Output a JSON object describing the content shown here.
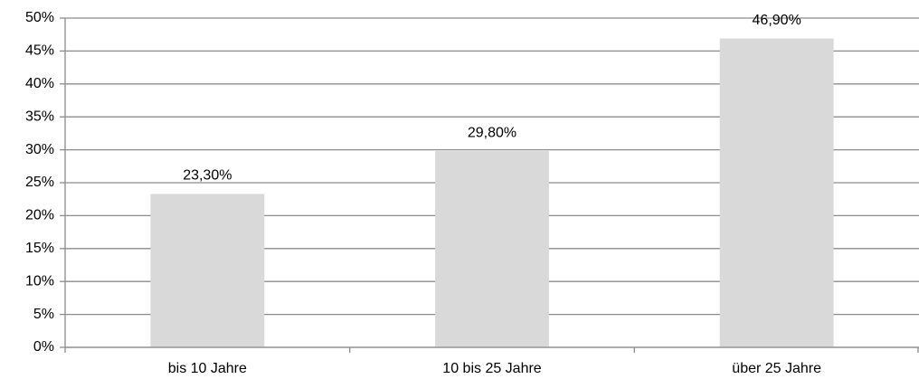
{
  "chart_data": {
    "type": "bar",
    "categories": [
      "bis 10 Jahre",
      "10 bis 25 Jahre",
      "über 25 Jahre"
    ],
    "values": [
      23.3,
      29.8,
      46.9
    ],
    "value_labels": [
      "23,30%",
      "29,80%",
      "46,90%"
    ],
    "color": "#d9d9d9",
    "ylim": [
      0,
      50
    ],
    "yticks": [
      {
        "value": 0,
        "label": "0%"
      },
      {
        "value": 5,
        "label": "5%"
      },
      {
        "value": 10,
        "label": "10%"
      },
      {
        "value": 15,
        "label": "15%"
      },
      {
        "value": 20,
        "label": "20%"
      },
      {
        "value": 25,
        "label": "25%"
      },
      {
        "value": 30,
        "label": "30%"
      },
      {
        "value": 35,
        "label": "35%"
      },
      {
        "value": 40,
        "label": "40%"
      },
      {
        "value": 45,
        "label": "45%"
      },
      {
        "value": 50,
        "label": "50%"
      }
    ],
    "grid": true
  }
}
